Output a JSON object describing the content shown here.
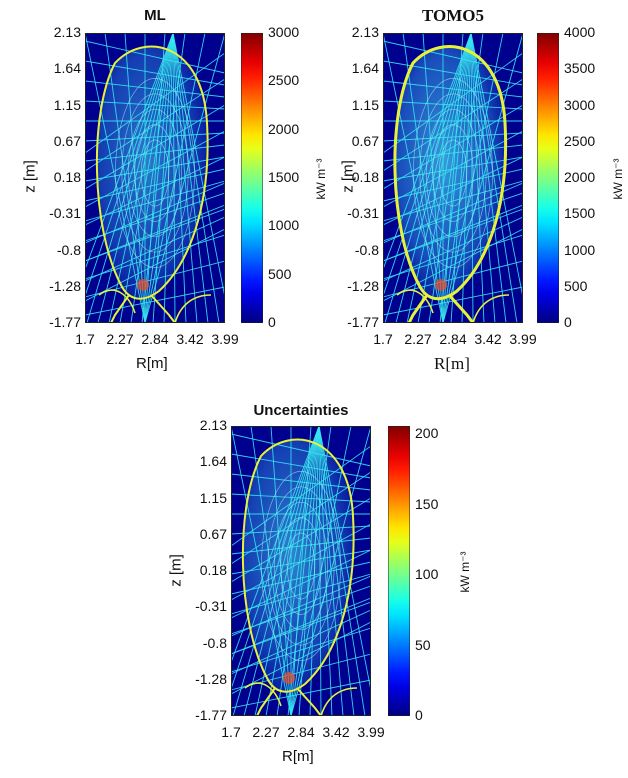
{
  "chart_data": [
    {
      "type": "heatmap",
      "title": "ML",
      "xlabel": "R[m]",
      "ylabel": "z [m]",
      "x_ticks": [
        "1.7",
        "2.27",
        "2.84",
        "3.42",
        "3.99"
      ],
      "y_ticks": [
        "2.13",
        "1.64",
        "1.15",
        "0.67",
        "0.18",
        "-0.31",
        "-0.8",
        "-1.28",
        "-1.77"
      ],
      "xlim": [
        1.7,
        3.99
      ],
      "ylim": [
        -1.77,
        2.13
      ],
      "colorbar": {
        "label": "kW m⁻³",
        "ticks": [
          "3000",
          "2500",
          "2000",
          "1500",
          "1000",
          "500",
          "0"
        ],
        "range": [
          0,
          3000
        ],
        "colormap": "jet"
      }
    },
    {
      "type": "heatmap",
      "title": "TOMO5",
      "xlabel": "R[m]",
      "ylabel": "z [m]",
      "x_ticks": [
        "1.7",
        "2.27",
        "2.84",
        "3.42",
        "3.99"
      ],
      "y_ticks": [
        "2.13",
        "1.64",
        "1.15",
        "0.67",
        "0.18",
        "-0.31",
        "-0.8",
        "-1.28",
        "-1.77"
      ],
      "xlim": [
        1.7,
        3.99
      ],
      "ylim": [
        -1.77,
        2.13
      ],
      "colorbar": {
        "label": "kW m⁻³",
        "ticks": [
          "4000",
          "3500",
          "3000",
          "2500",
          "2000",
          "1500",
          "1000",
          "500",
          "0"
        ],
        "range": [
          0,
          4000
        ],
        "colormap": "jet"
      }
    },
    {
      "type": "heatmap",
      "title": "Uncertainties",
      "xlabel": "R[m]",
      "ylabel": "z [m]",
      "x_ticks": [
        "1.7",
        "2.27",
        "2.84",
        "3.42",
        "3.99"
      ],
      "y_ticks": [
        "2.13",
        "1.64",
        "1.15",
        "0.67",
        "0.18",
        "-0.31",
        "-0.8",
        "-1.28",
        "-1.77"
      ],
      "xlim": [
        1.7,
        3.99
      ],
      "ylim": [
        -1.77,
        2.13
      ],
      "colorbar": {
        "label": "kW m⁻³",
        "ticks": [
          "200",
          "150",
          "100",
          "50",
          "0"
        ],
        "range": [
          0,
          206
        ],
        "colormap": "jet"
      }
    }
  ],
  "colors": {
    "background_field": "#00008f",
    "line_of_sight": "#37e6f0",
    "separatrix": "#e6f23a",
    "hotspot": "#e05030"
  }
}
